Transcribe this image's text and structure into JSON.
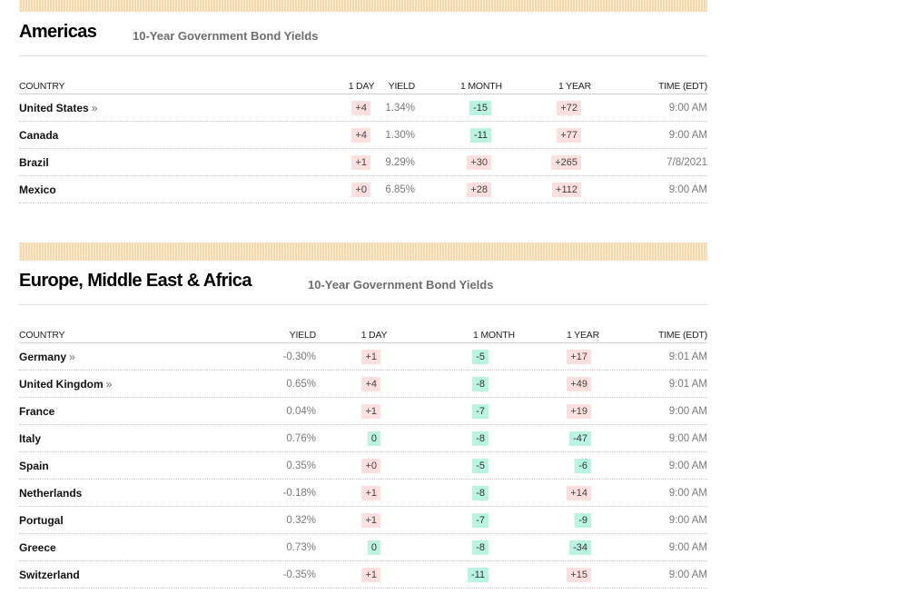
{
  "colors": {
    "stripe": "#f5d9ac",
    "positive_bg": "#fde0de",
    "negative_bg": "#b8f4e1"
  },
  "columns": [
    "COUNTRY",
    "YIELD",
    "1 DAY",
    "1 MONTH",
    "1 YEAR",
    "TIME (EDT)"
  ],
  "americas": {
    "region": "Americas",
    "subtitle": "10-Year Government Bond Yields",
    "rows": [
      {
        "country": "United States",
        "link": "»",
        "yield": "1.34%",
        "day": "+4",
        "month": "-15",
        "year": "+72",
        "time": "9:00 AM"
      },
      {
        "country": "Canada",
        "link": "",
        "yield": "1.30%",
        "day": "+4",
        "month": "-11",
        "year": "+77",
        "time": "9:00 AM"
      },
      {
        "country": "Brazil",
        "link": "",
        "yield": "9.29%",
        "day": "+1",
        "month": "+30",
        "year": "+265",
        "time": "7/8/2021"
      },
      {
        "country": "Mexico",
        "link": "",
        "yield": "6.85%",
        "day": "+0",
        "month": "+28",
        "year": "+112",
        "time": "9:00 AM"
      }
    ]
  },
  "emea": {
    "region": "Europe, Middle East & Africa",
    "subtitle": "10-Year Government Bond Yields",
    "rows": [
      {
        "country": "Germany",
        "link": "»",
        "yield": "-0.30%",
        "day": "+1",
        "month": "-5",
        "year": "+17",
        "time": "9:01 AM"
      },
      {
        "country": "United Kingdom",
        "link": "»",
        "yield": "0.65%",
        "day": "+4",
        "month": "-8",
        "year": "+49",
        "time": "9:01 AM"
      },
      {
        "country": "France",
        "link": "",
        "yield": "0.04%",
        "day": "+1",
        "month": "-7",
        "year": "+19",
        "time": "9:00 AM"
      },
      {
        "country": "Italy",
        "link": "",
        "yield": "0.76%",
        "day": "0",
        "month": "-8",
        "year": "-47",
        "time": "9:00 AM"
      },
      {
        "country": "Spain",
        "link": "",
        "yield": "0.35%",
        "day": "+0",
        "month": "-5",
        "year": "-6",
        "time": "9:00 AM"
      },
      {
        "country": "Netherlands",
        "link": "",
        "yield": "-0.18%",
        "day": "+1",
        "month": "-8",
        "year": "+14",
        "time": "9:00 AM"
      },
      {
        "country": "Portugal",
        "link": "",
        "yield": "0.32%",
        "day": "+1",
        "month": "-7",
        "year": "-9",
        "time": "9:00 AM"
      },
      {
        "country": "Greece",
        "link": "",
        "yield": "0.73%",
        "day": "0",
        "month": "-8",
        "year": "-34",
        "time": "9:00 AM"
      },
      {
        "country": "Switzerland",
        "link": "",
        "yield": "-0.35%",
        "day": "+1",
        "month": "-11",
        "year": "+15",
        "time": "9:00 AM"
      }
    ]
  }
}
